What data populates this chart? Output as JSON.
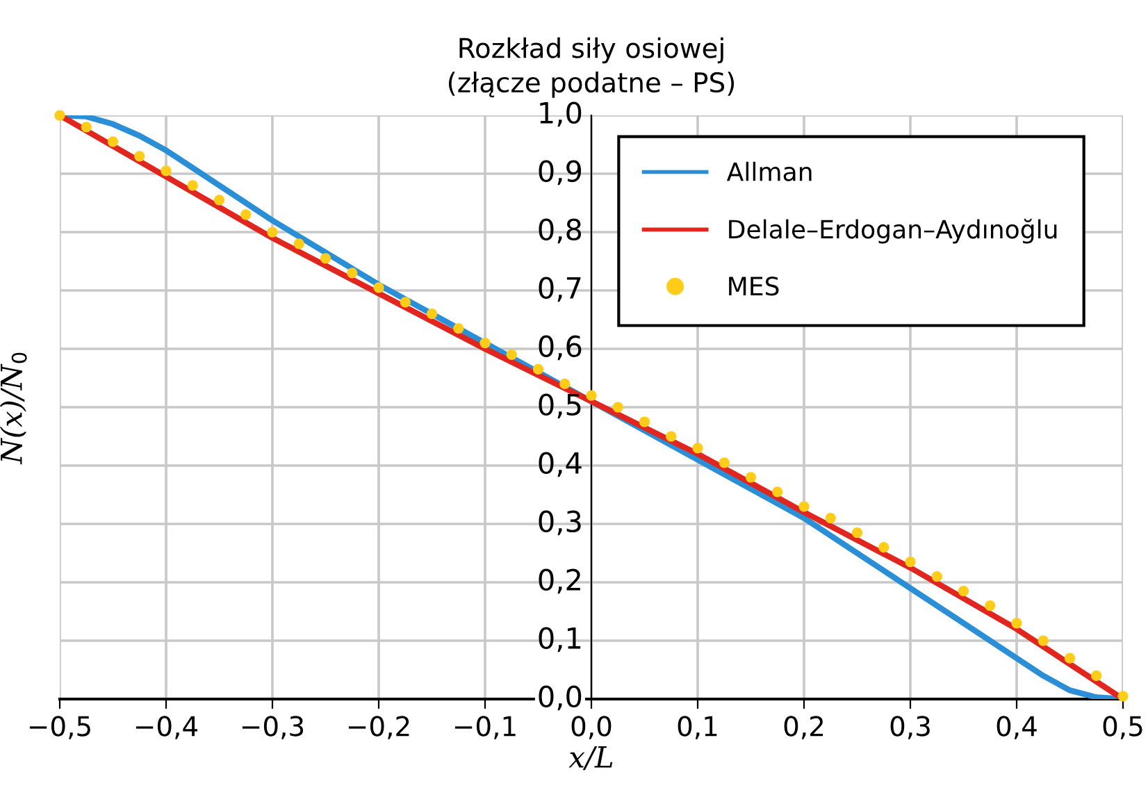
{
  "chart_data": {
    "type": "line",
    "title": "Rozkład siły osiowej\n(złącze podatne – PS)",
    "xlabel": "x/L",
    "ylabel": "N(x)/N$_{0}$",
    "xlim": [
      -0.5,
      0.5
    ],
    "ylim": [
      0,
      1.0
    ],
    "xticks": [
      {
        "value": -0.5,
        "label": "−0,5"
      },
      {
        "value": -0.4,
        "label": "−0,4"
      },
      {
        "value": -0.3,
        "label": "−0,3"
      },
      {
        "value": -0.2,
        "label": "−0,2"
      },
      {
        "value": -0.1,
        "label": "−0,1"
      },
      {
        "value": 0.0,
        "label": "0,0"
      },
      {
        "value": 0.1,
        "label": "0,1"
      },
      {
        "value": 0.2,
        "label": "0,2"
      },
      {
        "value": 0.3,
        "label": "0,3"
      },
      {
        "value": 0.4,
        "label": "0,4"
      },
      {
        "value": 0.5,
        "label": "0,5"
      }
    ],
    "yticks": [
      {
        "value": 0.0,
        "label": "0,0"
      },
      {
        "value": 0.1,
        "label": "0,1"
      },
      {
        "value": 0.2,
        "label": "0,2"
      },
      {
        "value": 0.3,
        "label": "0,3"
      },
      {
        "value": 0.4,
        "label": "0,4"
      },
      {
        "value": 0.5,
        "label": "0,5"
      },
      {
        "value": 0.6,
        "label": "0,6"
      },
      {
        "value": 0.7,
        "label": "0,7"
      },
      {
        "value": 0.8,
        "label": "0,8"
      },
      {
        "value": 0.9,
        "label": "0,9"
      },
      {
        "value": 1.0,
        "label": "1,0"
      }
    ],
    "grid": true,
    "legend": "top right",
    "series": [
      {
        "name": "MES",
        "type": "scatter",
        "marker": "circle",
        "color": "#ffcc1a",
        "x": [
          -0.5,
          -0.475,
          -0.45,
          -0.425,
          -0.4,
          -0.375,
          -0.35,
          -0.325,
          -0.3,
          -0.275,
          -0.25,
          -0.225,
          -0.2,
          -0.175,
          -0.15,
          -0.125,
          -0.1,
          -0.075,
          -0.05,
          -0.025,
          0.0,
          0.025,
          0.05,
          0.075,
          0.1,
          0.125,
          0.15,
          0.175,
          0.2,
          0.225,
          0.25,
          0.275,
          0.3,
          0.325,
          0.35,
          0.375,
          0.4,
          0.425,
          0.45,
          0.475,
          0.5
        ],
        "values": [
          1.0,
          0.98,
          0.955,
          0.93,
          0.905,
          0.88,
          0.855,
          0.83,
          0.8,
          0.78,
          0.755,
          0.73,
          0.705,
          0.68,
          0.66,
          0.635,
          0.61,
          0.59,
          0.565,
          0.54,
          0.52,
          0.5,
          0.475,
          0.45,
          0.43,
          0.405,
          0.38,
          0.355,
          0.33,
          0.31,
          0.285,
          0.26,
          0.235,
          0.21,
          0.185,
          0.16,
          0.13,
          0.1,
          0.07,
          0.04,
          0.005
        ]
      },
      {
        "name": "Allman",
        "color": "#2a8fd6",
        "x": [
          -0.5,
          -0.475,
          -0.45,
          -0.425,
          -0.4,
          -0.375,
          -0.35,
          -0.3,
          -0.25,
          -0.2,
          -0.15,
          -0.1,
          -0.05,
          0.0,
          0.05,
          0.1,
          0.15,
          0.2,
          0.25,
          0.3,
          0.35,
          0.375,
          0.4,
          0.425,
          0.45,
          0.475,
          0.5
        ],
        "values": [
          1.0,
          0.998,
          0.985,
          0.965,
          0.94,
          0.91,
          0.88,
          0.82,
          0.765,
          0.71,
          0.66,
          0.61,
          0.56,
          0.51,
          0.46,
          0.41,
          0.36,
          0.31,
          0.25,
          0.19,
          0.13,
          0.1,
          0.07,
          0.04,
          0.015,
          0.003,
          0.0
        ]
      },
      {
        "name": "Delale–Erdogan–Aydınoğlu",
        "color": "#e0261f",
        "x": [
          -0.5,
          -0.4,
          -0.3,
          -0.2,
          -0.1,
          0.0,
          0.1,
          0.2,
          0.3,
          0.4,
          0.5
        ],
        "values": [
          1.0,
          0.895,
          0.79,
          0.695,
          0.6,
          0.51,
          0.42,
          0.32,
          0.225,
          0.12,
          0.0
        ]
      }
    ]
  }
}
